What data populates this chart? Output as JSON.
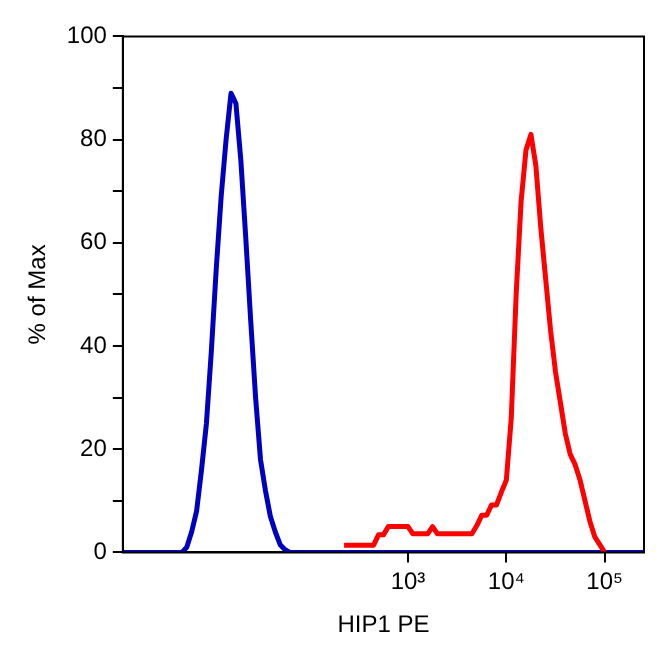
{
  "chart_data": {
    "type": "line",
    "xlabel": "HIP1 PE",
    "ylabel": "% of Max",
    "categories": [
      null,
      null,
      null,
      null,
      null,
      null,
      null,
      null,
      null,
      null,
      null,
      null,
      null,
      null,
      null,
      null,
      null,
      null,
      null,
      null,
      null,
      null,
      null,
      null,
      null,
      null,
      null,
      null,
      null,
      null,
      null,
      null,
      null,
      null,
      null,
      null,
      null,
      null,
      null,
      null,
      null,
      null,
      null,
      null,
      null,
      null,
      null,
      null,
      null,
      null,
      null,
      null,
      null,
      null,
      null,
      null,
      null,
      null,
      "10³",
      null,
      null,
      null,
      null,
      null,
      null,
      null,
      null,
      null,
      null,
      null,
      null,
      null,
      null,
      null,
      null,
      null,
      null,
      null,
      "10⁴",
      null,
      null,
      null,
      null,
      null,
      null,
      null,
      null,
      null,
      null,
      null,
      null,
      null,
      null,
      null,
      null,
      null,
      null,
      null,
      "10⁵",
      null,
      null,
      null,
      null,
      null,
      null,
      null,
      null
    ],
    "ylim": [
      0,
      100
    ],
    "yticks": [
      0,
      {
        "value": 10,
        "label": null
      },
      20,
      {
        "value": 30,
        "label": null
      },
      40,
      {
        "value": 50,
        "label": null
      },
      60,
      {
        "value": 70,
        "label": null
      },
      80,
      {
        "value": 90,
        "label": null
      },
      100
    ],
    "grid": false,
    "legend": false,
    "marker": "none",
    "line_style": "solid",
    "series": [
      {
        "color": "#ff0000",
        "values": [
          null,
          null,
          null,
          null,
          null,
          null,
          null,
          null,
          null,
          null,
          null,
          null,
          null,
          null,
          null,
          null,
          null,
          null,
          null,
          null,
          null,
          null,
          null,
          null,
          null,
          null,
          null,
          null,
          null,
          null,
          null,
          null,
          null,
          null,
          null,
          null,
          null,
          null,
          null,
          null,
          null,
          null,
          null,
          null,
          null,
          1.4,
          1.4,
          1.4,
          1.4,
          1.4,
          1.4,
          1.4,
          3.4,
          3.4,
          5,
          5,
          5,
          5,
          5,
          3.6,
          3.6,
          3.6,
          3.6,
          5,
          3.6,
          3.6,
          3.6,
          3.6,
          3.6,
          3.6,
          3.6,
          3.6,
          5.2,
          7.2,
          7.2,
          9.2,
          9.2,
          11.7,
          14,
          26,
          50,
          68,
          78,
          81,
          75,
          63,
          53,
          43,
          35,
          29,
          23,
          19,
          17,
          14,
          10,
          6,
          3,
          1.5,
          0,
          null,
          null,
          null,
          null,
          null,
          null,
          null,
          null
        ]
      },
      {
        "color": "#0000c0",
        "values": [
          0,
          0,
          0,
          0,
          0,
          0,
          0,
          0,
          0,
          0,
          0,
          0,
          0,
          1,
          4,
          8,
          16,
          25,
          39,
          55,
          69,
          80,
          89,
          87,
          76,
          61,
          45,
          30,
          18,
          12,
          7,
          4,
          1.5,
          0.5,
          0,
          0,
          0,
          0,
          0,
          0,
          0,
          0,
          0,
          0,
          0,
          0,
          0,
          0,
          0,
          0,
          0,
          0,
          0,
          0,
          0,
          0,
          0,
          0,
          0,
          0,
          0,
          0,
          0,
          0,
          0,
          0,
          0,
          0,
          0,
          0,
          0,
          0,
          0,
          0,
          0,
          0,
          0,
          0,
          0,
          0,
          0,
          0,
          0,
          0,
          0,
          0,
          0,
          0,
          0,
          0,
          0,
          0,
          0,
          0,
          0,
          0,
          0,
          0,
          0,
          0,
          0,
          0,
          0,
          0,
          0,
          0,
          0
        ]
      }
    ]
  }
}
